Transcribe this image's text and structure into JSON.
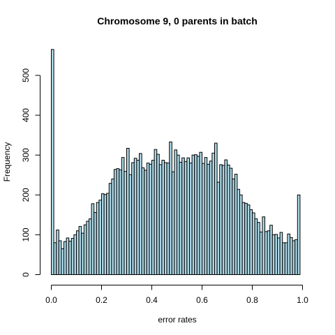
{
  "chart_data": {
    "type": "bar",
    "title": "Chromosome 9, 0 parents in batch",
    "xlabel": "error rates",
    "ylabel": "Frequency",
    "bar_color": "#add8e6",
    "edge_color": "#000000",
    "xlim": [
      0,
      1
    ],
    "ylim": [
      0,
      565
    ],
    "bin_width": 0.01,
    "bin_start": 0,
    "x_ticks": [
      0,
      0.2,
      0.4,
      0.6,
      0.8,
      1
    ],
    "x_tick_labels": [
      "0.0",
      "0.2",
      "0.4",
      "0.6",
      "0.8",
      "1.0"
    ],
    "y_ticks": [
      0,
      100,
      200,
      300,
      400,
      500
    ],
    "y_tick_labels": [
      "0",
      "100",
      "200",
      "300",
      "400",
      "500"
    ],
    "grid": false,
    "values": [
      565,
      80,
      112,
      85,
      65,
      83,
      92,
      84,
      91,
      100,
      110,
      121,
      104,
      125,
      134,
      140,
      178,
      156,
      181,
      187,
      203,
      201,
      204,
      229,
      240,
      264,
      266,
      263,
      294,
      259,
      317,
      251,
      281,
      292,
      287,
      304,
      268,
      262,
      280,
      277,
      287,
      314,
      302,
      276,
      287,
      281,
      280,
      333,
      258,
      313,
      300,
      282,
      293,
      284,
      293,
      280,
      300,
      301,
      297,
      307,
      279,
      294,
      277,
      285,
      305,
      330,
      232,
      276,
      274,
      288,
      275,
      267,
      240,
      252,
      214,
      200,
      181,
      179,
      175,
      163,
      155,
      140,
      131,
      107,
      145,
      108,
      110,
      124,
      100,
      101,
      92,
      106,
      80,
      80,
      102,
      93,
      85,
      88,
      200
    ]
  }
}
